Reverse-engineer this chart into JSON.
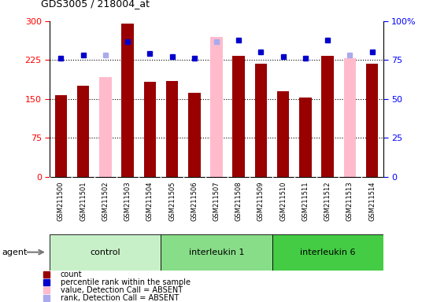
{
  "title": "GDS3005 / 218004_at",
  "samples": [
    "GSM211500",
    "GSM211501",
    "GSM211502",
    "GSM211503",
    "GSM211504",
    "GSM211505",
    "GSM211506",
    "GSM211507",
    "GSM211508",
    "GSM211509",
    "GSM211510",
    "GSM211511",
    "GSM211512",
    "GSM211513",
    "GSM211514"
  ],
  "count_values": [
    157,
    175,
    192,
    295,
    183,
    185,
    162,
    270,
    233,
    218,
    165,
    152,
    233,
    228,
    218
  ],
  "rank_values": [
    76,
    78,
    78,
    87,
    79,
    77,
    76,
    87,
    88,
    80,
    77,
    76,
    88,
    78,
    80
  ],
  "absent": [
    false,
    false,
    true,
    false,
    false,
    false,
    false,
    true,
    false,
    false,
    false,
    false,
    false,
    true,
    false
  ],
  "groups": [
    {
      "label": "control",
      "start": 0,
      "end": 5,
      "color": "#c8f0c8"
    },
    {
      "label": "interleukin 1",
      "start": 5,
      "end": 10,
      "color": "#88dd88"
    },
    {
      "label": "interleukin 6",
      "start": 10,
      "end": 15,
      "color": "#44cc44"
    }
  ],
  "bar_color_present": "#990000",
  "bar_color_absent": "#ffbbcc",
  "dot_color_present": "#0000cc",
  "dot_color_absent": "#aaaaee",
  "ylim_left": [
    0,
    300
  ],
  "ylim_right": [
    0,
    100
  ],
  "yticks_left": [
    0,
    75,
    150,
    225,
    300
  ],
  "yticks_right": [
    0,
    25,
    50,
    75,
    100
  ],
  "ytick_labels_left": [
    "0",
    "75",
    "150",
    "225",
    "300"
  ],
  "ytick_labels_right": [
    "0",
    "25",
    "50",
    "75",
    "100%"
  ],
  "hlines": [
    75,
    150,
    225
  ],
  "agent_label": "agent",
  "legend_items": [
    {
      "color": "#990000",
      "label": "count"
    },
    {
      "color": "#0000cc",
      "label": "percentile rank within the sample"
    },
    {
      "color": "#ffbbcc",
      "label": "value, Detection Call = ABSENT"
    },
    {
      "color": "#aaaaee",
      "label": "rank, Detection Call = ABSENT"
    }
  ],
  "tick_bg_color": "#cccccc",
  "plot_bg_color": "#ffffff",
  "bar_width": 0.55
}
